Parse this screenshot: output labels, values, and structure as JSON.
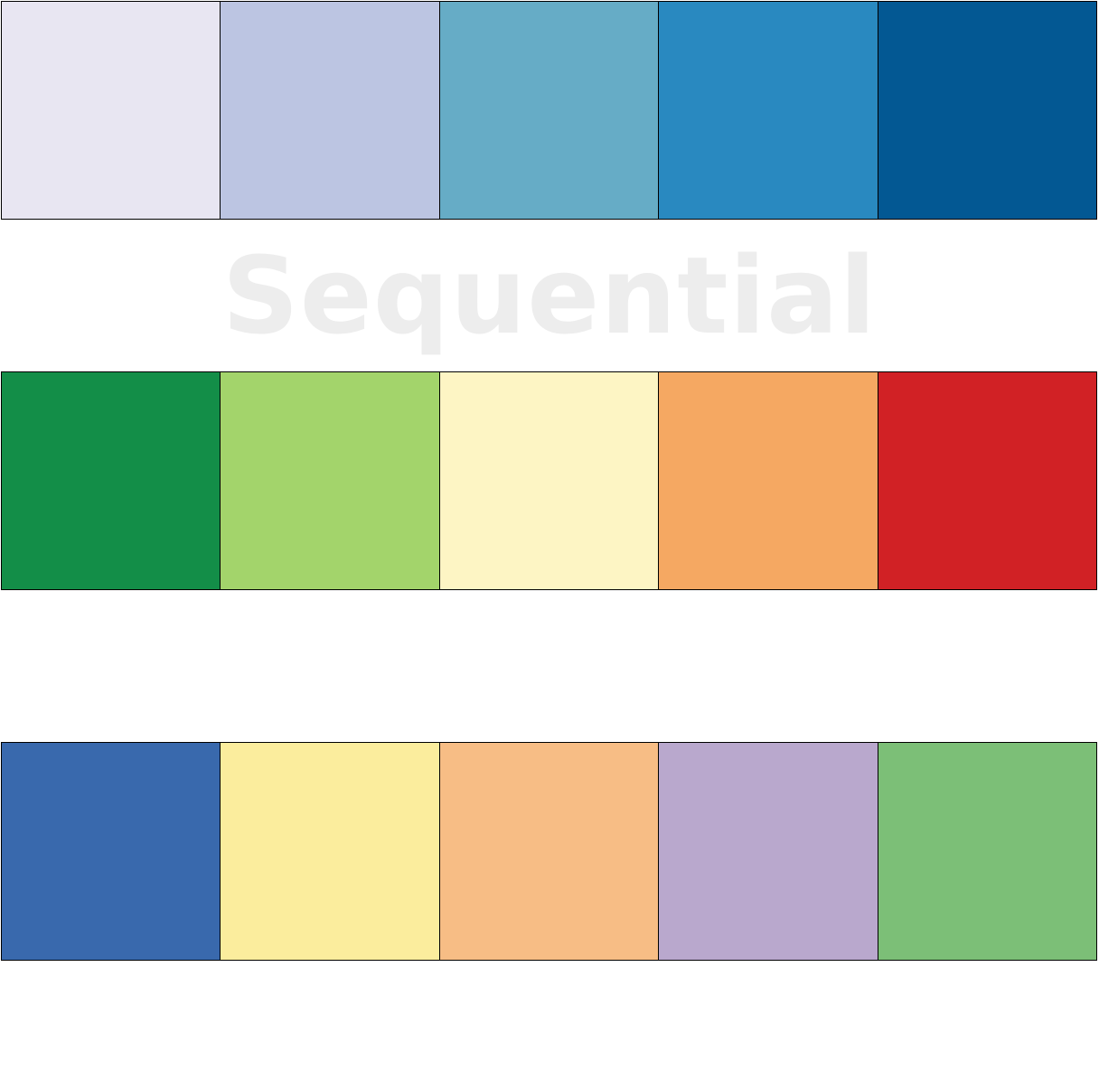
{
  "palettes": [
    {
      "label": "Sequential",
      "colors": [
        "#e8e6f2",
        "#bcc5e2",
        "#66acc6",
        "#2989c0",
        "#035893"
      ]
    },
    {
      "label": "",
      "colors": [
        "#138e48",
        "#a3d46b",
        "#fdf5c4",
        "#f5a862",
        "#d12125"
      ]
    },
    {
      "label": "",
      "colors": [
        "#3969ad",
        "#fbed9d",
        "#f7bd85",
        "#b9a8cd",
        "#7cbf77"
      ]
    }
  ]
}
